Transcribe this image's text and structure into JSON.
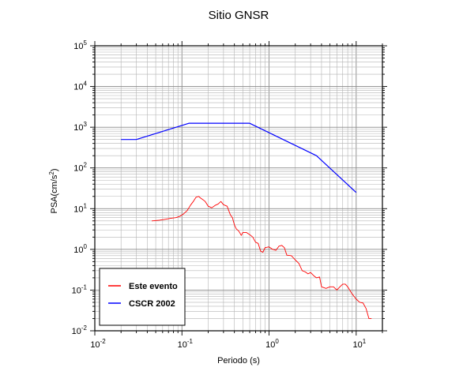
{
  "chart_data": {
    "type": "line",
    "title": "Sitio GNSR",
    "xlabel": "Periodo (s)",
    "ylabel": "PSA(cm/s",
    "ylabel_sup": "2",
    "ylabel_close": ")",
    "x_scale": "log",
    "y_scale": "log",
    "xlim": [
      0.01,
      20
    ],
    "ylim": [
      0.01,
      100000
    ],
    "grid": true,
    "legend_position": "bottom-left",
    "x_ticks": [
      {
        "base": "10",
        "exp": "-2"
      },
      {
        "base": "10",
        "exp": "-1"
      },
      {
        "base": "10",
        "exp": "0"
      },
      {
        "base": "10",
        "exp": "1"
      }
    ],
    "y_ticks": [
      {
        "base": "10",
        "exp": "-2"
      },
      {
        "base": "10",
        "exp": "-1"
      },
      {
        "base": "10",
        "exp": "0"
      },
      {
        "base": "10",
        "exp": "1"
      },
      {
        "base": "10",
        "exp": "2"
      },
      {
        "base": "10",
        "exp": "3"
      },
      {
        "base": "10",
        "exp": "4"
      },
      {
        "base": "10",
        "exp": "5"
      }
    ],
    "series": [
      {
        "name": "Este evento",
        "color": "#ff0000",
        "points": [
          [
            0.045,
            5.0
          ],
          [
            0.055,
            5.2
          ],
          [
            0.065,
            5.5
          ],
          [
            0.075,
            5.8
          ],
          [
            0.085,
            6.0
          ],
          [
            0.095,
            6.5
          ],
          [
            0.105,
            7.5
          ],
          [
            0.115,
            9.0
          ],
          [
            0.125,
            12.0
          ],
          [
            0.135,
            15.0
          ],
          [
            0.145,
            19.0
          ],
          [
            0.155,
            20.0
          ],
          [
            0.165,
            18.0
          ],
          [
            0.175,
            16.5
          ],
          [
            0.185,
            15.0
          ],
          [
            0.2,
            11.5
          ],
          [
            0.22,
            10.5
          ],
          [
            0.24,
            12.0
          ],
          [
            0.26,
            13.0
          ],
          [
            0.28,
            15.0
          ],
          [
            0.3,
            12.5
          ],
          [
            0.33,
            11.5
          ],
          [
            0.36,
            7.0
          ],
          [
            0.38,
            6.0
          ],
          [
            0.4,
            4.0
          ],
          [
            0.42,
            3.2
          ],
          [
            0.45,
            2.8
          ],
          [
            0.48,
            2.2
          ],
          [
            0.5,
            2.6
          ],
          [
            0.55,
            2.6
          ],
          [
            0.6,
            2.3
          ],
          [
            0.65,
            2.0
          ],
          [
            0.7,
            1.5
          ],
          [
            0.75,
            1.4
          ],
          [
            0.8,
            0.9
          ],
          [
            0.85,
            0.85
          ],
          [
            0.9,
            1.1
          ],
          [
            1.0,
            1.15
          ],
          [
            1.1,
            1.0
          ],
          [
            1.2,
            0.95
          ],
          [
            1.3,
            1.2
          ],
          [
            1.4,
            1.25
          ],
          [
            1.5,
            1.1
          ],
          [
            1.6,
            0.72
          ],
          [
            1.8,
            0.7
          ],
          [
            2.0,
            0.55
          ],
          [
            2.2,
            0.45
          ],
          [
            2.4,
            0.3
          ],
          [
            2.6,
            0.28
          ],
          [
            2.8,
            0.25
          ],
          [
            3.0,
            0.27
          ],
          [
            3.3,
            0.22
          ],
          [
            3.5,
            0.2
          ],
          [
            3.8,
            0.21
          ],
          [
            4.0,
            0.12
          ],
          [
            4.5,
            0.11
          ],
          [
            5.0,
            0.12
          ],
          [
            5.5,
            0.12
          ],
          [
            6.0,
            0.1
          ],
          [
            6.5,
            0.12
          ],
          [
            7.0,
            0.14
          ],
          [
            7.5,
            0.14
          ],
          [
            8.0,
            0.12
          ],
          [
            9.0,
            0.08
          ],
          [
            10.0,
            0.06
          ],
          [
            11.0,
            0.05
          ],
          [
            12.0,
            0.048
          ],
          [
            13.0,
            0.035
          ],
          [
            14.0,
            0.02
          ],
          [
            15.0,
            0.02
          ]
        ]
      },
      {
        "name": "CSCR 2002",
        "color": "#0000ff",
        "points": [
          [
            0.02,
            500
          ],
          [
            0.03,
            500
          ],
          [
            0.12,
            1250
          ],
          [
            0.6,
            1250
          ],
          [
            3.5,
            200
          ],
          [
            10.0,
            25
          ]
        ]
      }
    ]
  }
}
